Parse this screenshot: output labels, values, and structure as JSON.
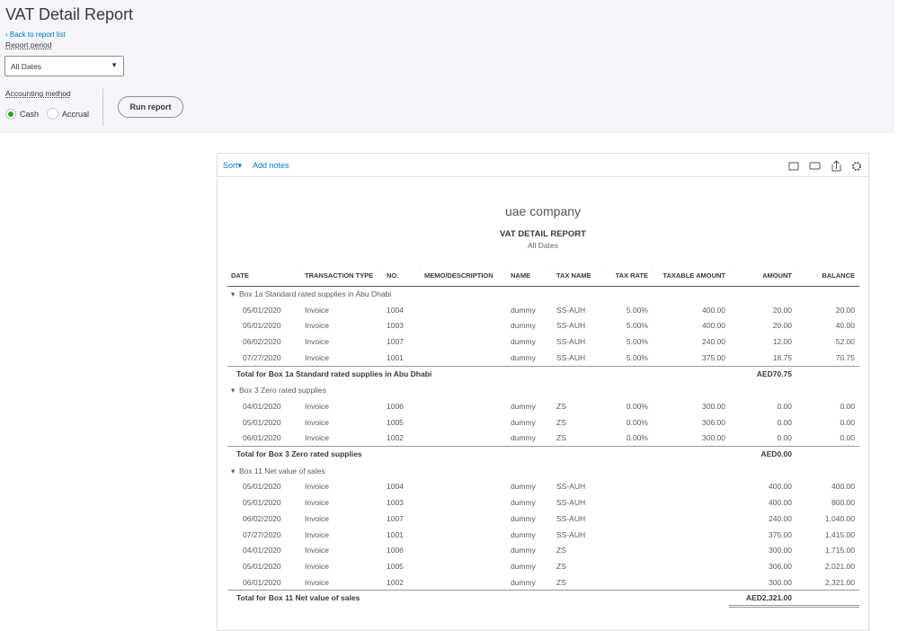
{
  "header": {
    "title": "VAT Detail Report",
    "back_link": "Back to report list",
    "period_label": "Report period",
    "period_value": "All Dates",
    "method_label": "Accounting method",
    "methods": [
      "Cash",
      "Accrual"
    ],
    "run_button": "Run report"
  },
  "toolbar": {
    "sort": "Sort",
    "add_notes": "Add notes"
  },
  "report": {
    "company": "uae company",
    "title": "VAT DETAIL REPORT",
    "period": "All Dates",
    "columns": [
      "DATE",
      "TRANSACTION TYPE",
      "NO.",
      "MEMO/DESCRIPTION",
      "NAME",
      "TAX NAME",
      "TAX RATE",
      "TAXABLE AMOUNT",
      "AMOUNT",
      "BALANCE"
    ],
    "sections": [
      {
        "name": "Box 1a Standard rated supplies in Abu Dhabi",
        "rows": [
          [
            "05/01/2020",
            "Invoice",
            "1004",
            null,
            "dummy",
            "SS-AUH",
            "5.00%",
            "400.00",
            "20.00",
            "20.00"
          ],
          [
            "05/01/2020",
            "Invoice",
            "1003",
            null,
            "dummy",
            "SS-AUH",
            "5.00%",
            "400.00",
            "20.00",
            "40.00"
          ],
          [
            "06/02/2020",
            "Invoice",
            "1007",
            null,
            "dummy",
            "SS-AUH",
            "5.00%",
            "240.00",
            "12.00",
            "52.00"
          ],
          [
            "07/27/2020",
            "Invoice",
            "1001",
            null,
            "dummy",
            "SS-AUH",
            "5.00%",
            "375.00",
            "18.75",
            "70.75"
          ]
        ],
        "total_label": "Total for Box 1a Standard rated supplies in Abu Dhabi",
        "total": "AED70.75"
      },
      {
        "name": "Box 3 Zero rated supplies",
        "rows": [
          [
            "04/01/2020",
            "Invoice",
            "1006",
            null,
            "dummy",
            "ZS",
            "0.00%",
            "300.00",
            "0.00",
            "0.00"
          ],
          [
            "05/01/2020",
            "Invoice",
            "1005",
            null,
            "dummy",
            "ZS",
            "0.00%",
            "306.00",
            "0.00",
            "0.00"
          ],
          [
            "06/01/2020",
            "Invoice",
            "1002",
            null,
            "dummy",
            "ZS",
            "0.00%",
            "300.00",
            "0.00",
            "0.00"
          ]
        ],
        "total_label": "Total for Box 3 Zero rated supplies",
        "total": "AED0.00"
      },
      {
        "name": "Box 11 Net value of sales",
        "rows": [
          [
            "05/01/2020",
            "Invoice",
            "1004",
            null,
            "dummy",
            "SS-AUH",
            null,
            null,
            "400.00",
            "400.00"
          ],
          [
            "05/01/2020",
            "Invoice",
            "1003",
            null,
            "dummy",
            "SS-AUH",
            null,
            null,
            "400.00",
            "800.00"
          ],
          [
            "06/02/2020",
            "Invoice",
            "1007",
            null,
            "dummy",
            "SS-AUH",
            null,
            null,
            "240.00",
            "1,040.00"
          ],
          [
            "07/27/2020",
            "Invoice",
            "1001",
            null,
            "dummy",
            "SS-AUH",
            null,
            null,
            "375.00",
            "1,415.00"
          ],
          [
            "04/01/2020",
            "Invoice",
            "1006",
            null,
            "dummy",
            "ZS",
            null,
            null,
            "300.00",
            "1,715.00"
          ],
          [
            "05/01/2020",
            "Invoice",
            "1005",
            null,
            "dummy",
            "ZS",
            null,
            null,
            "306.00",
            "2,021.00"
          ],
          [
            "06/01/2020",
            "Invoice",
            "1002",
            null,
            "dummy",
            "ZS",
            null,
            null,
            "300.00",
            "2,321.00"
          ]
        ],
        "total_label": "Total for Box 11 Net value of sales",
        "total": "AED2,321.00"
      }
    ]
  }
}
